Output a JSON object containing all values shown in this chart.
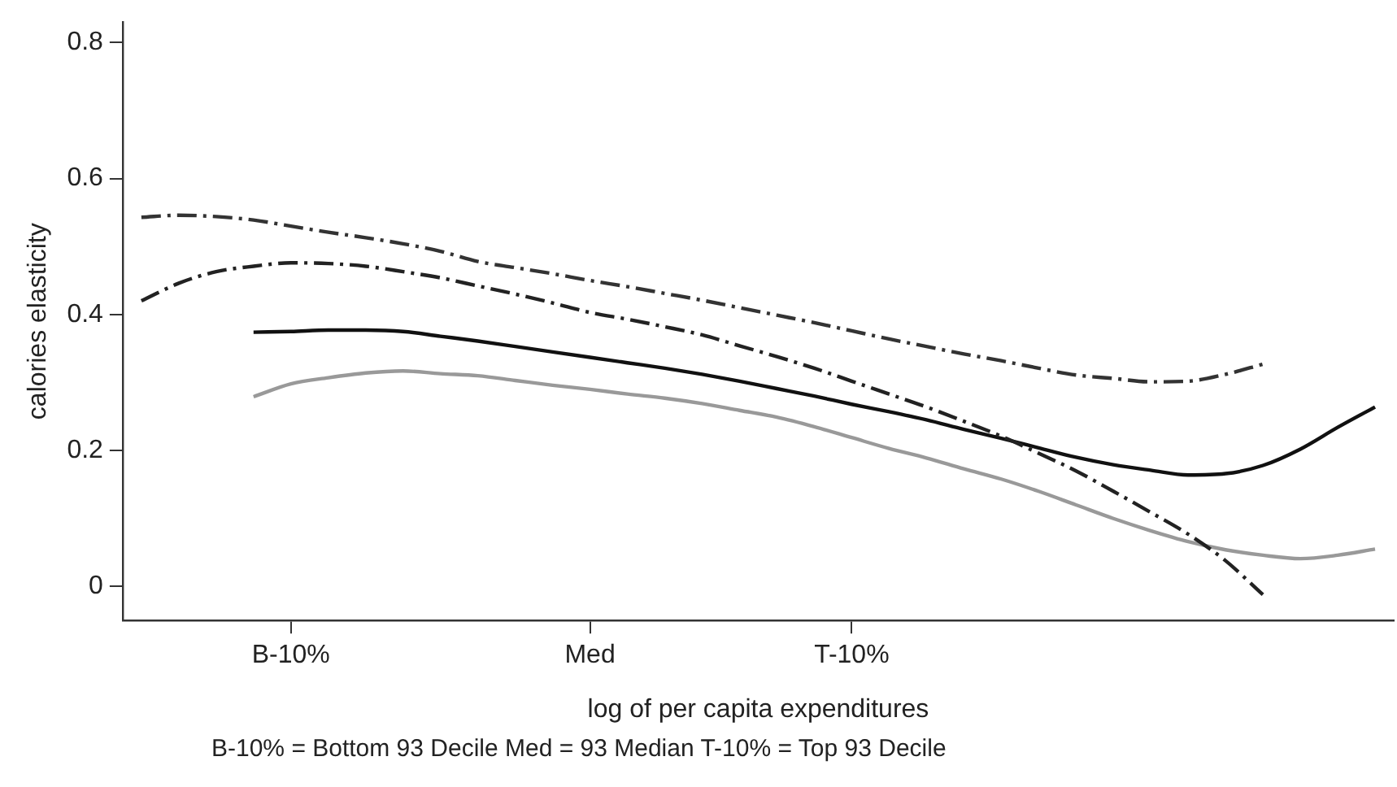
{
  "chart_data": {
    "type": "line",
    "xlabel": "log of per capita expenditures",
    "ylabel": "calories elasticity",
    "annotations": [
      "B-10% = Bottom 93 Decile  Med = 93 Median T-10% = Top 93 Decile"
    ],
    "categories": [
      null,
      null,
      null,
      null,
      "B-10%",
      null,
      null,
      null,
      null,
      null,
      null,
      null,
      "Med",
      null,
      null,
      null,
      null,
      null,
      null,
      "T-10%",
      null,
      null,
      null,
      null,
      null,
      null,
      null,
      null,
      null,
      null,
      null,
      null,
      null,
      null
    ],
    "ylim": [
      -0.05,
      0.83
    ],
    "yticks": [
      0,
      0.2,
      0.4,
      0.6,
      0.8
    ],
    "grid": false,
    "legend": false,
    "marker": "none",
    "series": [
      {
        "color": "#333333",
        "line_style": "dashed",
        "values": [
          0.543,
          0.546,
          0.544,
          0.539,
          0.53,
          0.521,
          0.513,
          0.504,
          0.493,
          0.478,
          0.469,
          0.46,
          0.45,
          0.441,
          0.431,
          0.421,
          0.41,
          0.399,
          0.388,
          0.376,
          0.364,
          0.353,
          0.342,
          0.332,
          0.321,
          0.311,
          0.306,
          0.301,
          0.302,
          0.312,
          0.327,
          null,
          null,
          null
        ]
      },
      {
        "color": "#222222",
        "line_style": "dashed",
        "values": [
          0.42,
          0.446,
          0.463,
          0.471,
          0.476,
          0.475,
          0.471,
          0.463,
          0.454,
          0.442,
          0.43,
          0.417,
          0.403,
          0.393,
          0.382,
          0.37,
          0.354,
          0.338,
          0.321,
          0.302,
          0.283,
          0.264,
          0.243,
          0.221,
          0.196,
          0.17,
          0.14,
          0.109,
          0.077,
          0.038,
          -0.012,
          null,
          null,
          null
        ]
      },
      {
        "color": "#111111",
        "line_style": "solid",
        "values": [
          null,
          null,
          null,
          0.374,
          0.375,
          0.377,
          0.377,
          0.375,
          0.368,
          0.361,
          0.353,
          0.345,
          0.337,
          0.329,
          0.321,
          0.312,
          0.302,
          0.291,
          0.28,
          0.268,
          0.257,
          0.245,
          0.231,
          0.218,
          0.204,
          0.19,
          0.179,
          0.171,
          0.164,
          0.166,
          0.178,
          0.202,
          0.234,
          0.264
        ]
      },
      {
        "color": "#999999",
        "line_style": "solid",
        "values": [
          null,
          null,
          null,
          0.279,
          0.298,
          0.307,
          0.314,
          0.317,
          0.313,
          0.31,
          0.303,
          0.296,
          0.29,
          0.283,
          0.277,
          0.269,
          0.259,
          0.249,
          0.235,
          0.219,
          0.203,
          0.189,
          0.173,
          0.158,
          0.14,
          0.12,
          0.1,
          0.082,
          0.066,
          0.054,
          0.046,
          0.041,
          0.046,
          0.055
        ]
      }
    ]
  }
}
